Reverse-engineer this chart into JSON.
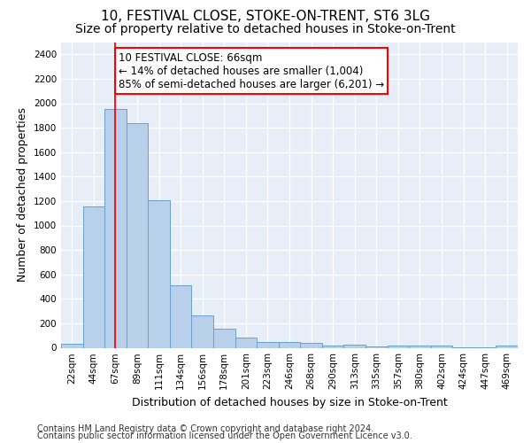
{
  "title": "10, FESTIVAL CLOSE, STOKE-ON-TRENT, ST6 3LG",
  "subtitle": "Size of property relative to detached houses in Stoke-on-Trent",
  "xlabel": "Distribution of detached houses by size in Stoke-on-Trent",
  "ylabel": "Number of detached properties",
  "categories": [
    "22sqm",
    "44sqm",
    "67sqm",
    "89sqm",
    "111sqm",
    "134sqm",
    "156sqm",
    "178sqm",
    "201sqm",
    "223sqm",
    "246sqm",
    "268sqm",
    "290sqm",
    "313sqm",
    "335sqm",
    "357sqm",
    "380sqm",
    "402sqm",
    "424sqm",
    "447sqm",
    "469sqm"
  ],
  "values": [
    30,
    1155,
    1955,
    1835,
    1210,
    510,
    265,
    155,
    80,
    50,
    45,
    40,
    20,
    22,
    13,
    20,
    20,
    20,
    5,
    5,
    20
  ],
  "bar_color": "#b8d0ea",
  "bar_edge_color": "#6aa0cc",
  "vline_x_index": 2,
  "vline_color": "red",
  "annotation_text": "10 FESTIVAL CLOSE: 66sqm\n← 14% of detached houses are smaller (1,004)\n85% of semi-detached houses are larger (6,201) →",
  "annotation_box_facecolor": "white",
  "annotation_box_edgecolor": "red",
  "ylim": [
    0,
    2500
  ],
  "yticks": [
    0,
    200,
    400,
    600,
    800,
    1000,
    1200,
    1400,
    1600,
    1800,
    2000,
    2200,
    2400
  ],
  "grid_color": "#d0d8e8",
  "background_color": "#e8eef8",
  "footer1": "Contains HM Land Registry data © Crown copyright and database right 2024.",
  "footer2": "Contains public sector information licensed under the Open Government Licence v3.0.",
  "title_fontsize": 11,
  "subtitle_fontsize": 10,
  "axis_label_fontsize": 9,
  "tick_fontsize": 7.5,
  "annotation_fontsize": 8.5,
  "footer_fontsize": 7
}
